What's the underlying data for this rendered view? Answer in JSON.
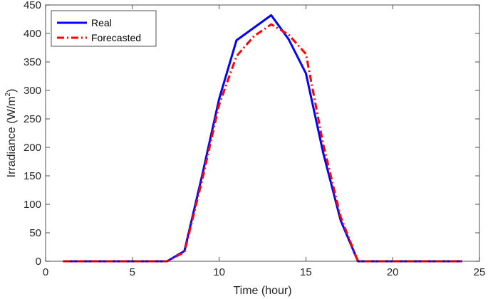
{
  "chart_data": {
    "type": "line",
    "title": "",
    "xlabel": "Time (hour)",
    "ylabel_main": "Irradiance (W/m",
    "ylabel_sup": "2",
    "ylabel_close": ")",
    "xlim": [
      0,
      25
    ],
    "ylim": [
      0,
      450
    ],
    "xticks": [
      0,
      5,
      10,
      15,
      20,
      25
    ],
    "yticks": [
      0,
      50,
      100,
      150,
      200,
      250,
      300,
      350,
      400,
      450
    ],
    "grid": false,
    "legend_position": "top-left",
    "x": [
      1,
      2,
      3,
      4,
      5,
      6,
      7,
      8,
      9,
      10,
      11,
      12,
      13,
      14,
      15,
      16,
      17,
      18,
      19,
      20,
      21,
      22,
      23,
      24
    ],
    "series": [
      {
        "name": "Real",
        "color": "#0000ff",
        "style": "solid",
        "values": [
          0,
          0,
          0,
          0,
          0,
          0,
          0,
          18,
          148,
          285,
          388,
          410,
          432,
          390,
          330,
          190,
          72,
          0,
          0,
          0,
          0,
          0,
          0,
          0
        ]
      },
      {
        "name": "Forecasted",
        "color": "#ff0000",
        "style": "dashdot",
        "values": [
          0,
          0,
          0,
          0,
          0,
          0,
          0,
          16,
          140,
          275,
          360,
          395,
          416,
          398,
          364,
          205,
          78,
          0,
          0,
          0,
          0,
          0,
          0,
          0
        ]
      }
    ]
  }
}
